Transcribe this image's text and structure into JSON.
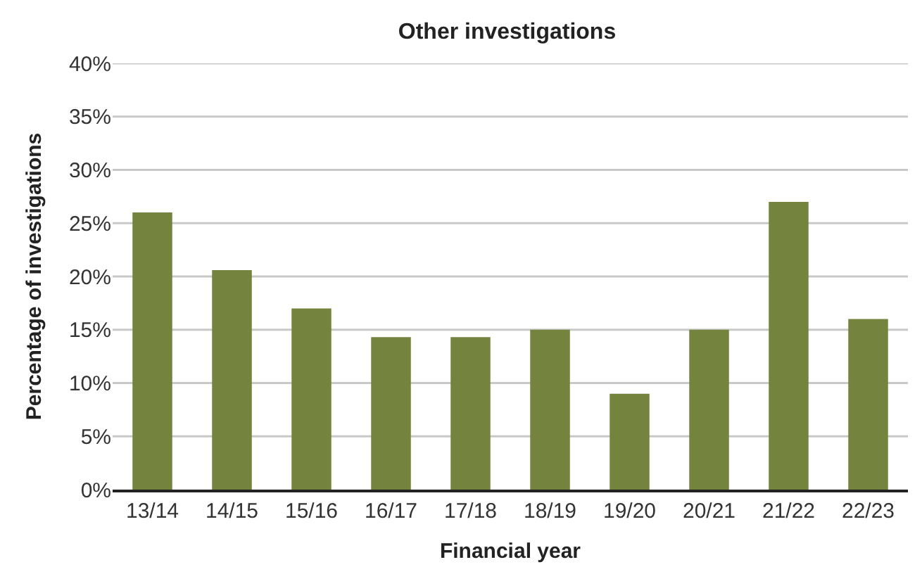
{
  "chart_data": {
    "type": "bar",
    "title": "Other investigations",
    "xlabel": "Financial year",
    "ylabel": "Percentage of investigations",
    "categories": [
      "13/14",
      "14/15",
      "15/16",
      "16/17",
      "17/18",
      "18/19",
      "19/20",
      "20/21",
      "21/22",
      "22/23"
    ],
    "values": [
      26,
      20.6,
      17,
      14.3,
      14.3,
      15,
      9,
      15,
      27,
      16
    ],
    "color": "#74833e",
    "ylim": [
      0,
      40
    ],
    "yticks": [
      {
        "value": 0,
        "label": "0%"
      },
      {
        "value": 5,
        "label": "5%"
      },
      {
        "value": 10,
        "label": "10%"
      },
      {
        "value": 15,
        "label": "15%"
      },
      {
        "value": 20,
        "label": "20%"
      },
      {
        "value": 25,
        "label": "25%"
      },
      {
        "value": 30,
        "label": "30%"
      },
      {
        "value": 35,
        "label": "35%"
      },
      {
        "value": 40,
        "label": "40%"
      }
    ],
    "grid": "y"
  }
}
